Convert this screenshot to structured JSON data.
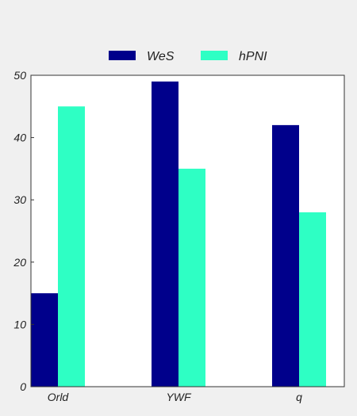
{
  "chart_data": {
    "type": "bar",
    "categories": [
      "Orld",
      "YWF",
      "q"
    ],
    "series": [
      {
        "name": "WeS",
        "values": [
          15,
          49,
          42
        ],
        "color": "#00008b"
      },
      {
        "name": "hPNI",
        "values": [
          45,
          35,
          28
        ],
        "color": "#2effc4"
      }
    ],
    "title": "",
    "xlabel": "",
    "ylabel": "",
    "ylim": [
      0,
      50
    ],
    "yticks": [
      "0",
      "10",
      "20",
      "30",
      "40",
      "50"
    ],
    "grid": false,
    "legend_position": "top-center",
    "background_color": "#f0f0f0",
    "plot_background_color": "#ffffff"
  }
}
